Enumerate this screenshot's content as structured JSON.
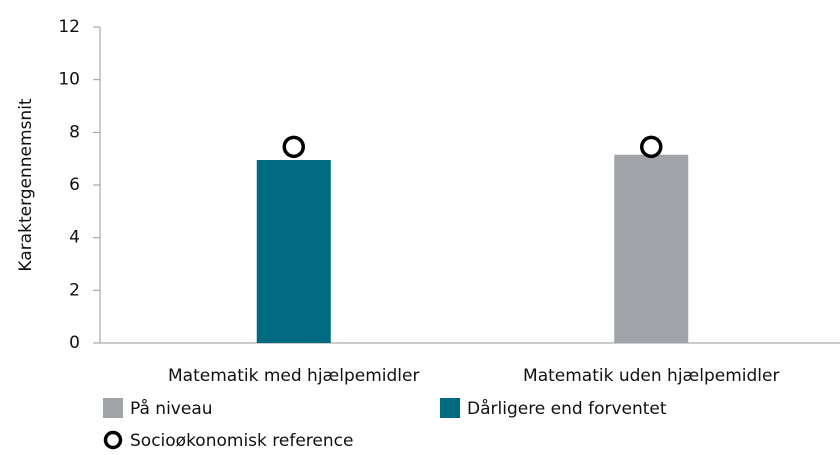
{
  "chart_data": {
    "type": "bar",
    "y_label": "Karaktergennemsnit",
    "categories": [
      "Matematik med hjælpemidler",
      "Matematik uden hjælpemidler"
    ],
    "values": [
      6.95,
      7.15
    ],
    "colors": [
      "#006a80",
      "#a0a4a8"
    ],
    "legend": [
      {
        "name": "På niveau",
        "color": "#a0a4a8"
      },
      {
        "name": "Dårligere end forventet",
        "color": "#006a80"
      }
    ],
    "reference": {
      "name": "Socioøkonomisk reference",
      "values": [
        7.45,
        7.45
      ]
    },
    "ylim": [
      0,
      12
    ],
    "yticks": [
      0,
      2,
      4,
      6,
      8,
      10,
      12
    ]
  }
}
